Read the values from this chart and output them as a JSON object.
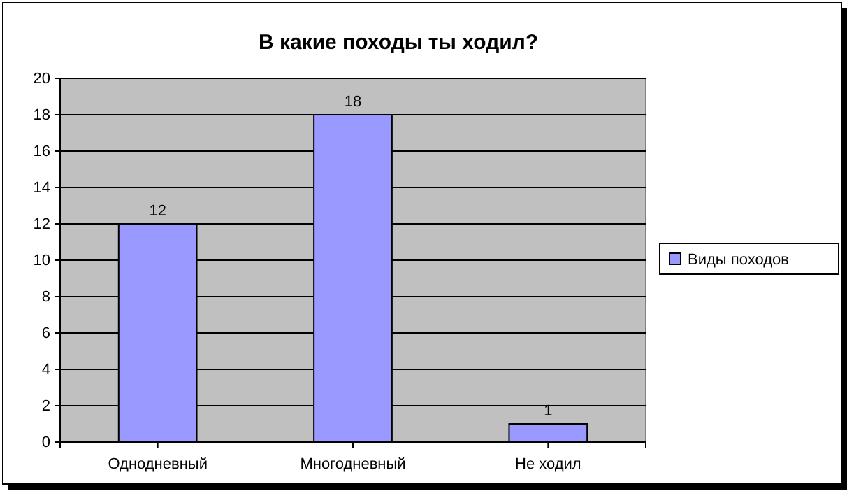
{
  "chart_data": {
    "type": "bar",
    "title": "В какие походы ты ходил?",
    "categories": [
      "Однодневный",
      "Многодневный",
      "Не ходил"
    ],
    "series": [
      {
        "name": "Виды походов",
        "color": "#9999ff",
        "values": [
          12,
          18,
          1
        ]
      }
    ],
    "ylim": [
      0,
      20
    ],
    "yticks": [
      0,
      2,
      4,
      6,
      8,
      10,
      12,
      14,
      16,
      18,
      20
    ],
    "grid": "y",
    "legend": "right",
    "data_labels": true
  }
}
